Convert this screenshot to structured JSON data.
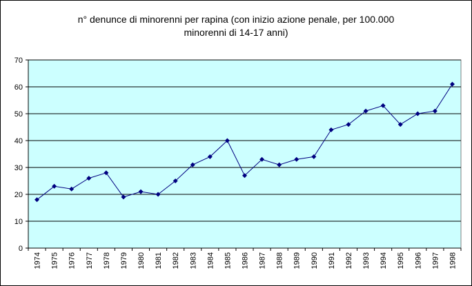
{
  "chart_data": {
    "type": "line",
    "title_lines": [
      "n° denunce di minorenni per rapina (con inizio azione penale, per 100.000",
      "minorenni di 14-17 anni)"
    ],
    "xlabel": "",
    "ylabel": "",
    "categories": [
      "1974",
      "1975",
      "1976",
      "1977",
      "1978",
      "1979",
      "1980",
      "1981",
      "1982",
      "1983",
      "1984",
      "1985",
      "1986",
      "1987",
      "1988",
      "1989",
      "1990",
      "1991",
      "1992",
      "1993",
      "1994",
      "1995",
      "1996",
      "1997",
      "1998"
    ],
    "series": [
      {
        "values": [
          18,
          23,
          22,
          26,
          28,
          19,
          21,
          20,
          25,
          31,
          34,
          40,
          27,
          33,
          31,
          33,
          34,
          44,
          46,
          51,
          53,
          46,
          50,
          51,
          61
        ]
      }
    ],
    "ylim": [
      0,
      70
    ],
    "yticks": [
      0,
      10,
      20,
      30,
      40,
      50,
      60,
      70
    ],
    "grid": true,
    "legend": "none",
    "colors": {
      "plot_background": "#ccffff",
      "line": "#000080",
      "marker": "#000080",
      "gridline": "#000000"
    }
  }
}
